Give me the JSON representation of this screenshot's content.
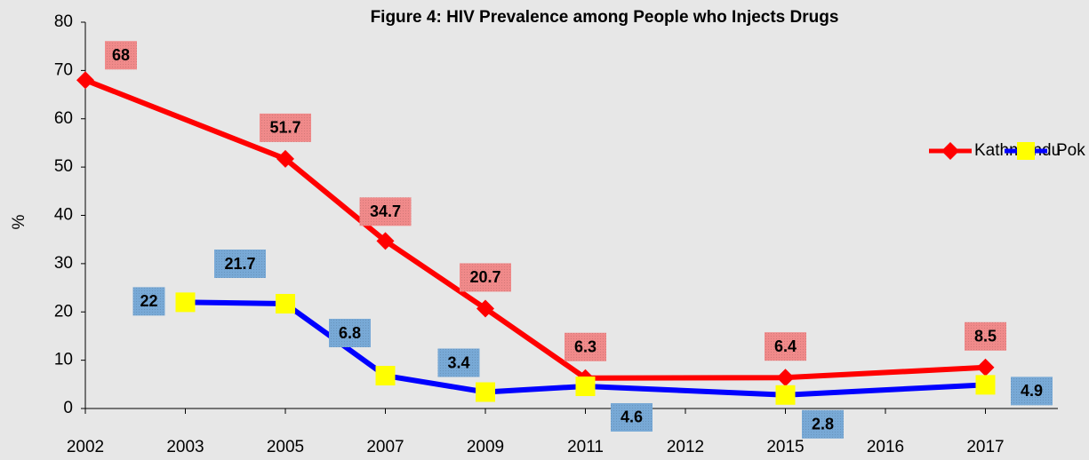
{
  "chart_data": {
    "type": "line",
    "title": "Figure 4: HIV Prevalence among People who Injects Drugs",
    "y_label": "%",
    "categories": [
      "2002",
      "2003",
      "2005",
      "2007",
      "2009",
      "2011",
      "2012",
      "2015",
      "2016",
      "2017"
    ],
    "series": [
      {
        "name": "Kathmandu",
        "color": "#ff0000",
        "marker_color": "#ff0000",
        "label_color": "#f08a8a",
        "x": [
          "2002",
          "2005",
          "2007",
          "2009",
          "2011",
          "2015",
          "2017"
        ],
        "values": [
          68,
          51.7,
          34.7,
          20.7,
          6.3,
          6.4,
          8.5
        ]
      },
      {
        "name": "Pok",
        "color": "#0000ff",
        "marker_color": "#ffff00",
        "label_color": "#78a9d6",
        "x": [
          "2003",
          "2005",
          "2007",
          "2009",
          "2011",
          "2015",
          "2017"
        ],
        "values": [
          22,
          21.7,
          6.8,
          3.4,
          4.6,
          2.8,
          4.9
        ]
      }
    ],
    "ylim": [
      0,
      80
    ],
    "yticks": [
      0,
      10,
      20,
      30,
      40,
      50,
      60,
      70,
      80
    ],
    "legend": "right"
  }
}
